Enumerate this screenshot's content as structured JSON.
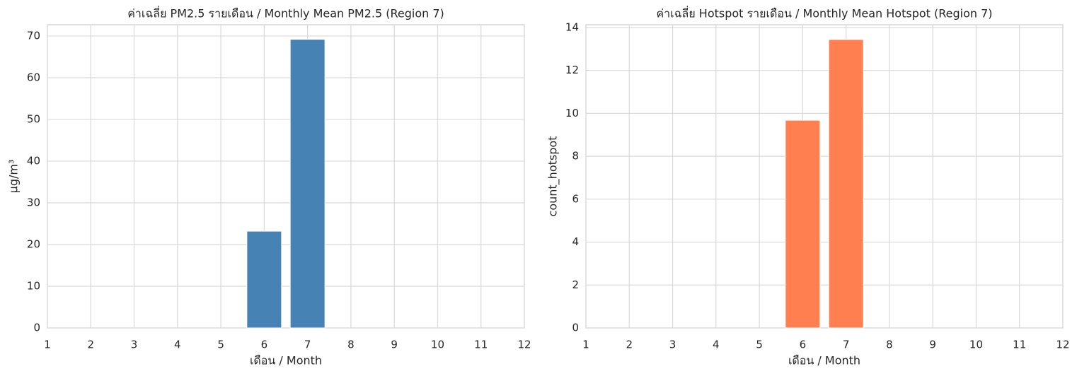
{
  "chart_data": [
    {
      "type": "bar",
      "title": "ค่าเฉลี่ย PM2.5 รายเดือน / Monthly Mean PM2.5 (Region 7)",
      "x_label": "เดือน / Month",
      "y_label": "µg/m³",
      "x": [
        6,
        7
      ],
      "values": [
        23.2,
        69.2
      ],
      "color": "#4682b4",
      "xlim": [
        1,
        12
      ],
      "xticks": [
        1,
        2,
        3,
        4,
        5,
        6,
        7,
        8,
        9,
        10,
        11,
        12
      ],
      "ylim": [
        0,
        72.7
      ],
      "yticks": [
        0,
        10,
        20,
        30,
        40,
        50,
        60,
        70
      ],
      "grid": true
    },
    {
      "type": "bar",
      "title": "ค่าเฉลี่ย Hotspot รายเดือน / Monthly Mean Hotspot (Region 7)",
      "x_label": "เดือน / Month",
      "y_label": "count_hotspot",
      "x": [
        6,
        7
      ],
      "values": [
        9.68,
        13.44
      ],
      "color": "#ff7f50",
      "xlim": [
        1,
        12
      ],
      "xticks": [
        1,
        2,
        3,
        4,
        5,
        6,
        7,
        8,
        9,
        10,
        11,
        12
      ],
      "ylim": [
        0,
        14.13
      ],
      "yticks": [
        0,
        2,
        4,
        6,
        8,
        10,
        12,
        14
      ],
      "grid": true
    }
  ]
}
